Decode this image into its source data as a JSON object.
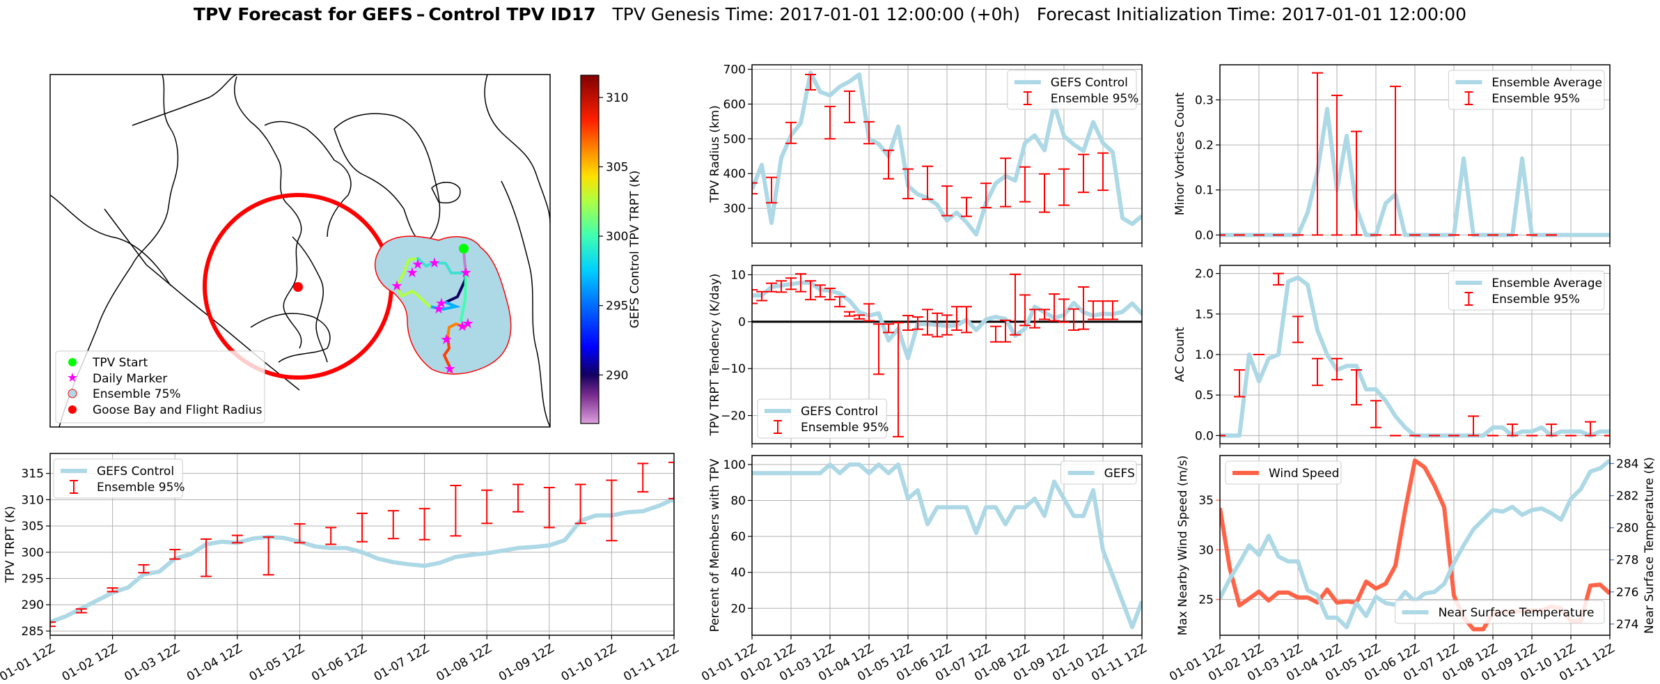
{
  "title": {
    "bold": "TPV Forecast for GEFS – Control TPV ID17",
    "genesis": "TPV Genesis Time: 2017-01-01 12:00:00 (+0h)",
    "init": "Forecast Initialization Time: 2017-01-01 12:00:00"
  },
  "x_ticks": [
    "01-01 12Z",
    "01-02 12Z",
    "01-03 12Z",
    "01-04 12Z",
    "01-05 12Z",
    "01-06 12Z",
    "01-07 12Z",
    "01-08 12Z",
    "01-09 12Z",
    "01-10 12Z",
    "01-11 12Z"
  ],
  "colors": {
    "control": "#add8e6",
    "ensemble": "#ff0000",
    "wind": "#ff6347",
    "temp_axis": "#4169e1",
    "grid": "#b0b0b0"
  },
  "map": {
    "legend": [
      "TPV Start",
      "Daily Marker",
      "Ensemble 75%",
      "Goose Bay and Flight Radius"
    ],
    "colorbar": {
      "label": "GEFS Control TPV TRPT (K)",
      "ticks": [
        290,
        295,
        300,
        305,
        310
      ],
      "range": [
        286.5,
        311.6
      ]
    }
  },
  "chart_data": [
    {
      "id": "trpt",
      "type": "line",
      "title": "",
      "xlabel": "",
      "ylabel": "TPV TRPT (K)",
      "ylim": [
        284.2,
        318.8
      ],
      "yticks": [
        285,
        290,
        295,
        300,
        305,
        310,
        315
      ],
      "legend": [
        "GEFS Control",
        "Ensemble 95%"
      ],
      "legend_position": "upper-left",
      "grid": true,
      "x_step_days": 0.25,
      "series": [
        {
          "name": "GEFS Control",
          "values": [
            286.7,
            287.8,
            289.3,
            290.8,
            292.3,
            293.3,
            295.8,
            296.3,
            298.8,
            299.6,
            301.5,
            302.0,
            301.8,
            302.6,
            302.9,
            302.7,
            302.0,
            301.1,
            300.8,
            300.8,
            300.0,
            298.8,
            298.1,
            297.7,
            297.4,
            298.0,
            299.1,
            299.5,
            299.8,
            300.3,
            300.8,
            301.0,
            301.3,
            302.3,
            306.0,
            307.0,
            307.0,
            307.6,
            307.8,
            308.8,
            310.1,
            311.3
          ]
        }
      ],
      "errorbars": {
        "name": "Ensemble 95%",
        "x_index": [
          0,
          2,
          4,
          6,
          8,
          10,
          12,
          14,
          16,
          18,
          20,
          22,
          24,
          26,
          28,
          30,
          32,
          34,
          36,
          38,
          40
        ],
        "low": [
          285.9,
          288.5,
          292.5,
          296.1,
          298.7,
          295.4,
          301.8,
          295.7,
          301.8,
          301.5,
          302.0,
          302.6,
          302.4,
          303.1,
          305.5,
          307.7,
          304.7,
          305.5,
          302.2,
          311.5,
          310.2
        ],
        "high": [
          286.7,
          289.2,
          293.2,
          297.6,
          300.5,
          302.5,
          303.2,
          302.9,
          305.4,
          304.7,
          307.4,
          307.9,
          308.3,
          312.7,
          311.8,
          312.9,
          312.3,
          312.9,
          313.7,
          316.9,
          317.1
        ]
      }
    },
    {
      "id": "radius",
      "type": "line",
      "ylabel": "TPV Radius (km)",
      "ylim": [
        200,
        713
      ],
      "yticks": [
        300,
        400,
        500,
        600,
        700
      ],
      "legend": [
        "GEFS Control",
        "Ensemble 95%"
      ],
      "legend_position": "upper-right",
      "grid": true,
      "series": [
        {
          "name": "GEFS Control",
          "values": [
            355,
            425,
            258,
            445,
            510,
            545,
            690,
            635,
            625,
            650,
            665,
            685,
            500,
            485,
            450,
            535,
            365,
            340,
            330,
            310,
            265,
            288,
            260,
            225,
            315,
            372,
            393,
            380,
            488,
            510,
            467,
            600,
            508,
            484,
            465,
            548,
            488,
            462,
            272,
            255,
            278
          ]
        }
      ],
      "errorbars": {
        "name": "Ensemble 95%",
        "x_index": [
          0,
          2,
          4,
          6,
          8,
          10,
          12,
          14,
          16,
          18,
          20,
          22,
          24,
          26,
          28,
          30,
          32,
          34,
          36
        ],
        "low": [
          342,
          316,
          487,
          641,
          500,
          547,
          486,
          385,
          328,
          326,
          279,
          277,
          302,
          305,
          319,
          289,
          309,
          346,
          352
        ],
        "high": [
          373,
          389,
          547,
          685,
          593,
          637,
          549,
          467,
          413,
          421,
          364,
          331,
          372,
          444,
          419,
          399,
          413,
          455,
          459
        ]
      }
    },
    {
      "id": "tendency",
      "type": "line",
      "ylabel": "TPV TRPT Tendency (K/day)",
      "ylim": [
        -26,
        12
      ],
      "yticks": [
        -20,
        -10,
        0,
        10
      ],
      "zero_line": true,
      "legend": [
        "GEFS Control",
        "Ensemble 95%"
      ],
      "legend_position": "lower-left",
      "grid": true,
      "series": [
        {
          "name": "GEFS Control",
          "values": [
            5.6,
            5.6,
            7.4,
            7.7,
            8.0,
            8.3,
            8.3,
            6.8,
            6.6,
            6.0,
            4.5,
            2.0,
            1.3,
            1.8,
            -4.0,
            -1.5,
            -7.8,
            -0.5,
            -0.5,
            -0.7,
            -0.9,
            -0.8,
            0.4,
            -1.8,
            0.5,
            1.0,
            0.6,
            -3.0,
            -1.5,
            3.2,
            2.0,
            0.8,
            1.4,
            4.0,
            2.0,
            1.3,
            1.7,
            1.6,
            2.1,
            3.9,
            1.7,
            0.1
          ]
        }
      ],
      "errorbars": {
        "name": "Ensemble 95%",
        "x_index": [
          0,
          1,
          2,
          3,
          4,
          5,
          6,
          7,
          8,
          9,
          10,
          11,
          12,
          13,
          14,
          15,
          16,
          17,
          18,
          19,
          20,
          21,
          22,
          25,
          26,
          27,
          28,
          29,
          30,
          31,
          32,
          33,
          34,
          35,
          36,
          37
        ],
        "low": [
          3.9,
          4.5,
          6.4,
          6.3,
          6.9,
          6.4,
          4.7,
          5.3,
          4.7,
          3.2,
          1.2,
          0.6,
          0.2,
          -11.2,
          -2.3,
          -24.5,
          -1.8,
          -1.6,
          -2.8,
          -3.2,
          -2.8,
          -1.8,
          -2.3,
          -4.3,
          -4.3,
          -2.8,
          -0.8,
          -1.3,
          0.5,
          0.2,
          -0.1,
          -1.8,
          -1.6,
          0.5,
          0.5,
          0.5
        ],
        "high": [
          6.8,
          6.4,
          8.2,
          8.7,
          9.3,
          10.2,
          8.7,
          7.8,
          7.1,
          5.3,
          2.1,
          1.4,
          3.8,
          -0.5,
          -0.5,
          -0.2,
          1.3,
          1.0,
          2.6,
          1.8,
          1.4,
          3.2,
          3.2,
          -1.0,
          0.3,
          10.1,
          5.7,
          2.6,
          2.6,
          5.9,
          4.8,
          2.7,
          7.4,
          4.4,
          4.4,
          4.4
        ]
      }
    },
    {
      "id": "percent",
      "type": "line",
      "ylabel": "Percent of Members with TPV",
      "ylim": [
        5,
        105
      ],
      "yticks": [
        20,
        40,
        60,
        80,
        100
      ],
      "legend": [
        "GEFS"
      ],
      "legend_position": "upper-right",
      "grid": true,
      "series": [
        {
          "name": "GEFS",
          "values": [
            95.2,
            95.2,
            95.2,
            95.2,
            95.2,
            95.2,
            95.2,
            95.2,
            100,
            95.2,
            100,
            100,
            95.2,
            100,
            95.2,
            100,
            81,
            85.7,
            66.7,
            76.2,
            76.2,
            76.2,
            76.2,
            61.9,
            76.2,
            76.2,
            66.7,
            76.2,
            76.2,
            81,
            71.4,
            90.5,
            81,
            71.4,
            71.4,
            85.7,
            52.4,
            38.1,
            23.8,
            9.5,
            23.8
          ]
        }
      ]
    },
    {
      "id": "minor",
      "type": "line",
      "ylabel": "Minor Vortices Count",
      "ylim": [
        -0.018,
        0.378
      ],
      "yticks": [
        0.0,
        0.1,
        0.2,
        0.3
      ],
      "legend": [
        "Ensemble Average",
        "Ensemble 95%"
      ],
      "legend_position": "upper-right",
      "grid": true,
      "series": [
        {
          "name": "Ensemble Average",
          "values": [
            0,
            0,
            0,
            0,
            0,
            0,
            0,
            0,
            0,
            0.05,
            0.14,
            0.28,
            0.1,
            0.22,
            0.06,
            0,
            0,
            0.07,
            0.09,
            0,
            0,
            0,
            0,
            0,
            0,
            0.17,
            0,
            0,
            0,
            0,
            0,
            0.17,
            0,
            0,
            0,
            0,
            0,
            0,
            0,
            0,
            0
          ]
        }
      ],
      "errorbars": {
        "name": "Ensemble 95%",
        "x_index": [
          0,
          2,
          4,
          6,
          8,
          10,
          12,
          14,
          16,
          18,
          20,
          22,
          24,
          26,
          28,
          30,
          32,
          34
        ],
        "low": [
          0,
          0,
          0,
          0,
          0,
          0,
          0,
          0,
          0,
          0,
          0,
          0,
          0,
          0,
          0,
          0,
          0,
          0
        ],
        "high": [
          0,
          0,
          0,
          0,
          0,
          0.36,
          0.31,
          0.23,
          0,
          0.33,
          0,
          0,
          0,
          0,
          0,
          0,
          0,
          0
        ]
      }
    },
    {
      "id": "ac",
      "type": "line",
      "ylabel": "AC Count",
      "ylim": [
        -0.1,
        2.1
      ],
      "yticks": [
        0.0,
        0.5,
        1.0,
        1.5,
        2.0
      ],
      "legend": [
        "Ensemble Average",
        "Ensemble 95%"
      ],
      "legend_position": "upper-right",
      "grid": true,
      "series": [
        {
          "name": "Ensemble Average",
          "values": [
            0,
            0,
            0,
            1,
            0.67,
            0.95,
            1,
            1.9,
            1.95,
            1.86,
            1.3,
            1.0,
            0.81,
            0.86,
            0.86,
            0.57,
            0.57,
            0.43,
            0.24,
            0.1,
            0,
            0,
            0,
            0,
            0,
            0,
            0,
            0,
            0.1,
            0.1,
            0,
            0.05,
            0.05,
            0.1,
            0,
            0.05,
            0.05,
            0.05,
            0,
            0.05,
            0.05
          ]
        }
      ],
      "errorbars": {
        "name": "Ensemble 95%",
        "x_index": [
          0,
          2,
          4,
          6,
          8,
          10,
          12,
          14,
          16,
          18,
          20,
          22,
          24,
          26,
          28,
          30,
          32,
          34,
          36,
          38,
          40
        ],
        "low": [
          0,
          0.48,
          1,
          1.86,
          1.15,
          0.62,
          0.69,
          0.38,
          0.1,
          0,
          0,
          0,
          0,
          0,
          0,
          0,
          0,
          0,
          0,
          0,
          0
        ],
        "high": [
          0,
          0.81,
          1,
          2.0,
          1.47,
          0.95,
          0.95,
          0.81,
          0.43,
          0,
          0,
          0,
          0,
          0.24,
          0,
          0.14,
          0,
          0.14,
          0,
          0.17,
          0
        ]
      }
    },
    {
      "id": "wind_temp",
      "type": "line",
      "ylabel": "Max Nearby Wind Speed (m/s)",
      "ylim": [
        21.4,
        39.5
      ],
      "yticks": [
        25,
        30,
        35
      ],
      "y2label": "Near Surface Temperature (K)",
      "y2lim": [
        273.3,
        284.5
      ],
      "y2ticks": [
        274,
        276,
        278,
        280,
        282,
        284
      ],
      "legend": [
        "Wind Speed",
        "Near Surface Temperature"
      ],
      "grid": true,
      "series": [
        {
          "name": "Wind Speed",
          "axis": "left",
          "values": [
            34.2,
            28.2,
            24.4,
            25.1,
            25.8,
            24.9,
            25.7,
            25.7,
            25.2,
            25.2,
            24.7,
            26.0,
            24.7,
            24.8,
            24.7,
            26.8,
            26.1,
            26.6,
            28.4,
            34.0,
            39.0,
            38.3,
            36.5,
            34.3,
            25.4,
            23.2,
            22.0,
            22.0,
            23.6,
            23.7,
            23.8,
            23.8,
            23.9,
            23.9,
            24.3,
            24.1,
            22.8,
            22.8,
            26.4,
            26.5,
            25.6
          ]
        },
        {
          "name": "Near Surface Temperature",
          "axis": "right",
          "values": [
            275.6,
            276.8,
            277.8,
            278.9,
            278.3,
            279.5,
            278.2,
            277.9,
            277.9,
            276.1,
            275.8,
            274.4,
            274.4,
            273.8,
            275.3,
            274.5,
            275.7,
            275.3,
            275.2,
            276.0,
            275.4,
            275.9,
            276.0,
            276.5,
            277.8,
            278.9,
            279.9,
            280.5,
            281.1,
            281.0,
            281.3,
            280.8,
            281.1,
            281.2,
            280.9,
            280.5,
            281.8,
            282.4,
            283.5,
            283.7,
            284.2
          ]
        }
      ]
    }
  ]
}
